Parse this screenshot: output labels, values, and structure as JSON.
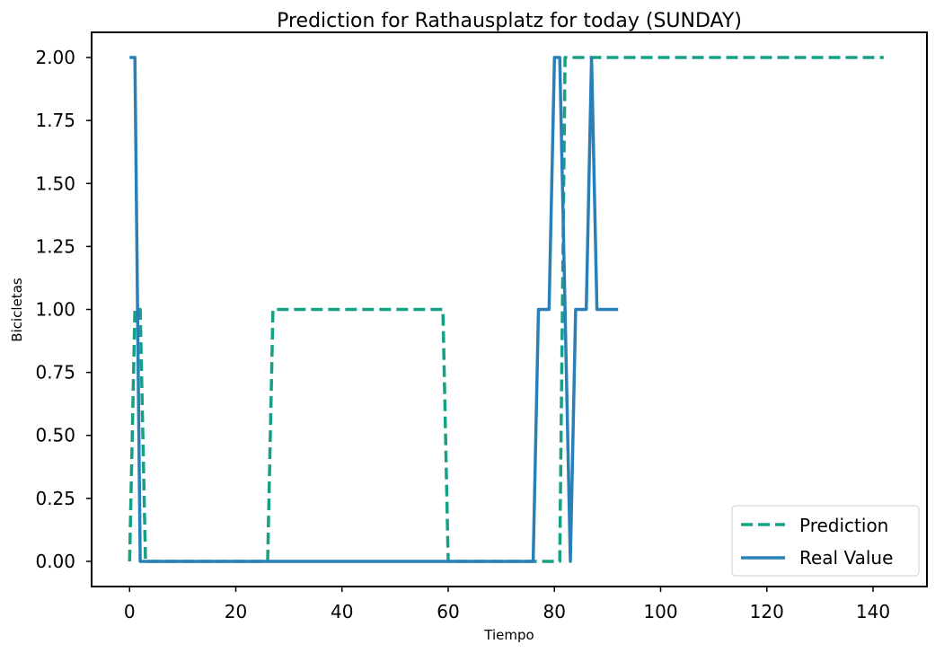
{
  "chart_data": {
    "type": "line",
    "title": "Prediction for Rathausplatz for today (SUNDAY)",
    "xlabel": "Tiempo",
    "ylabel": "Bicicletas",
    "xlim": [
      -7.15,
      150.15
    ],
    "ylim": [
      -0.1,
      2.1
    ],
    "x_ticks": [
      0,
      20,
      40,
      60,
      80,
      100,
      120,
      140
    ],
    "x_tick_labels": [
      "0",
      "20",
      "40",
      "60",
      "80",
      "100",
      "120",
      "140"
    ],
    "y_ticks": [
      0.0,
      0.25,
      0.5,
      0.75,
      1.0,
      1.25,
      1.5,
      1.75,
      2.0
    ],
    "y_tick_labels": [
      "0.00",
      "0.25",
      "0.50",
      "0.75",
      "1.00",
      "1.25",
      "1.50",
      "1.75",
      "2.00"
    ],
    "grid": false,
    "legend_position": "lower-right",
    "series": [
      {
        "name": "Prediction",
        "color": "#16a085",
        "style": "dashed",
        "x": [
          0,
          1,
          2,
          3,
          26,
          27,
          59,
          60,
          81,
          82,
          142
        ],
        "y": [
          0,
          1,
          1,
          0,
          0,
          1,
          1,
          0,
          0,
          2,
          2
        ]
      },
      {
        "name": "Real Value",
        "color": "#2980b9",
        "style": "solid",
        "x": [
          0,
          1,
          2,
          76,
          77,
          79,
          80,
          81,
          83,
          84,
          86,
          87,
          88,
          92
        ],
        "y": [
          2,
          2,
          0,
          0,
          1,
          1,
          2,
          2,
          0,
          1,
          1,
          2,
          1,
          1
        ]
      }
    ]
  }
}
